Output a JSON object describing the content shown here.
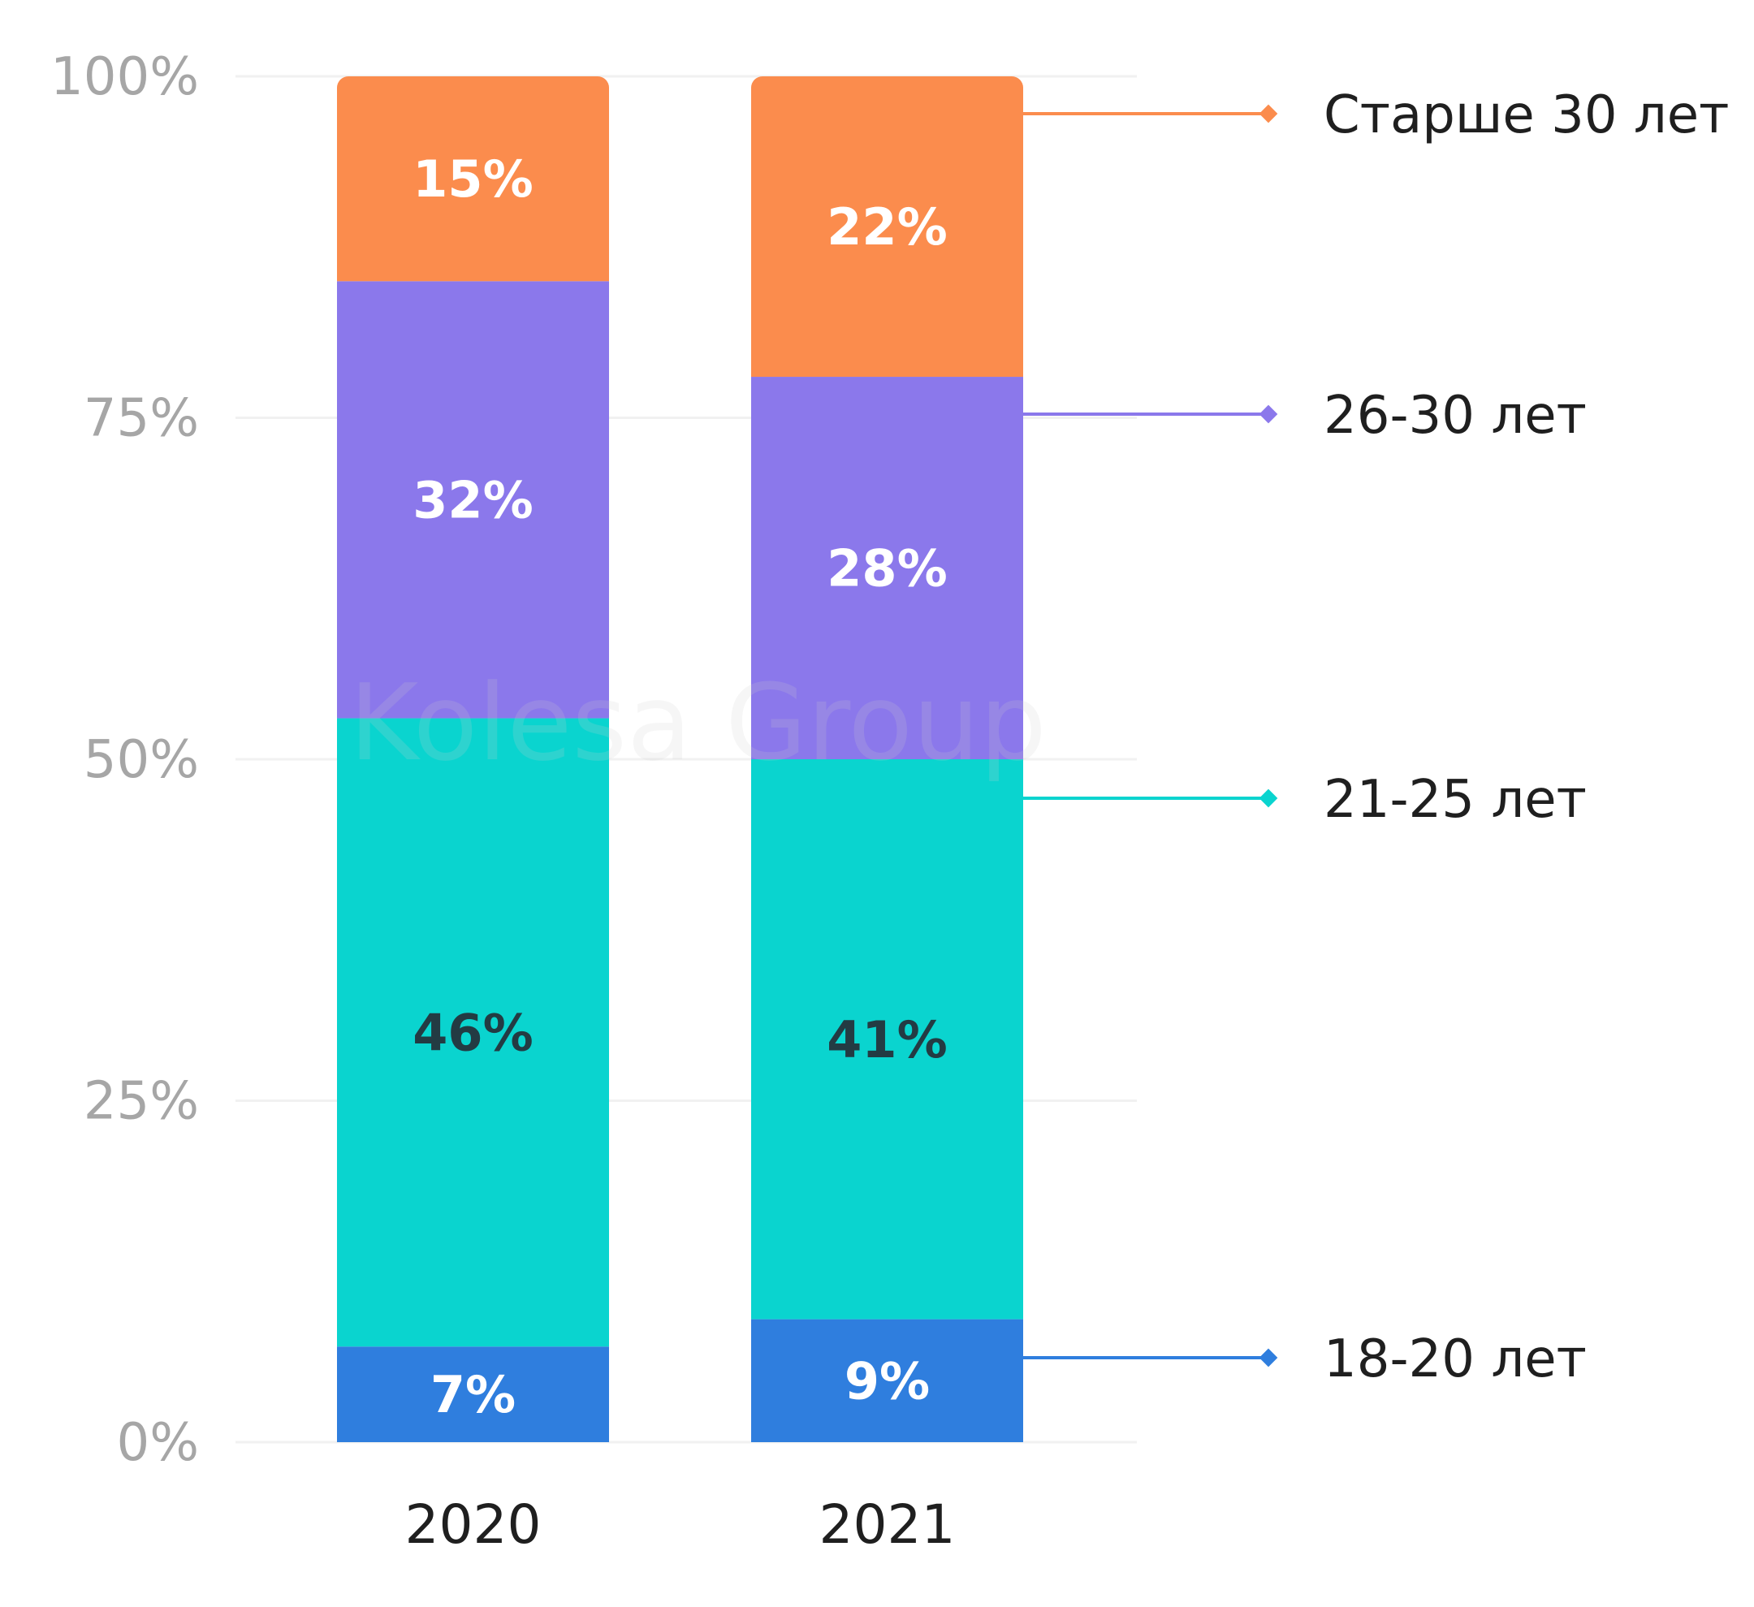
{
  "chart_data": {
    "type": "bar",
    "stacked": true,
    "categories": [
      "2020",
      "2021"
    ],
    "series": [
      {
        "name": "18-20 лет",
        "values": [
          7,
          9
        ],
        "labels": [
          "7%",
          "9%"
        ],
        "color": "#2f7ede",
        "label_color": "#ffffff"
      },
      {
        "name": "21-25 лет",
        "values": [
          46,
          41
        ],
        "labels": [
          "46%",
          "41%"
        ],
        "color": "#0ad4cf",
        "label_color": "#233b43"
      },
      {
        "name": "26-30 лет",
        "values": [
          32,
          28
        ],
        "labels": [
          "32%",
          "28%"
        ],
        "color": "#8b78eb",
        "label_color": "#ffffff"
      },
      {
        "name": "Старше 30 лет",
        "values": [
          15,
          22
        ],
        "labels": [
          "15%",
          "22%"
        ],
        "color": "#fb8c4d",
        "label_color": "#ffffff"
      }
    ],
    "ylim": [
      0,
      100
    ],
    "yticks": [
      0,
      25,
      50,
      75,
      100
    ],
    "ytick_labels": [
      "0%",
      "25%",
      "50%",
      "75%",
      "100%"
    ],
    "grid": true,
    "legend_position": "right",
    "watermark": "Kolesa Group"
  }
}
